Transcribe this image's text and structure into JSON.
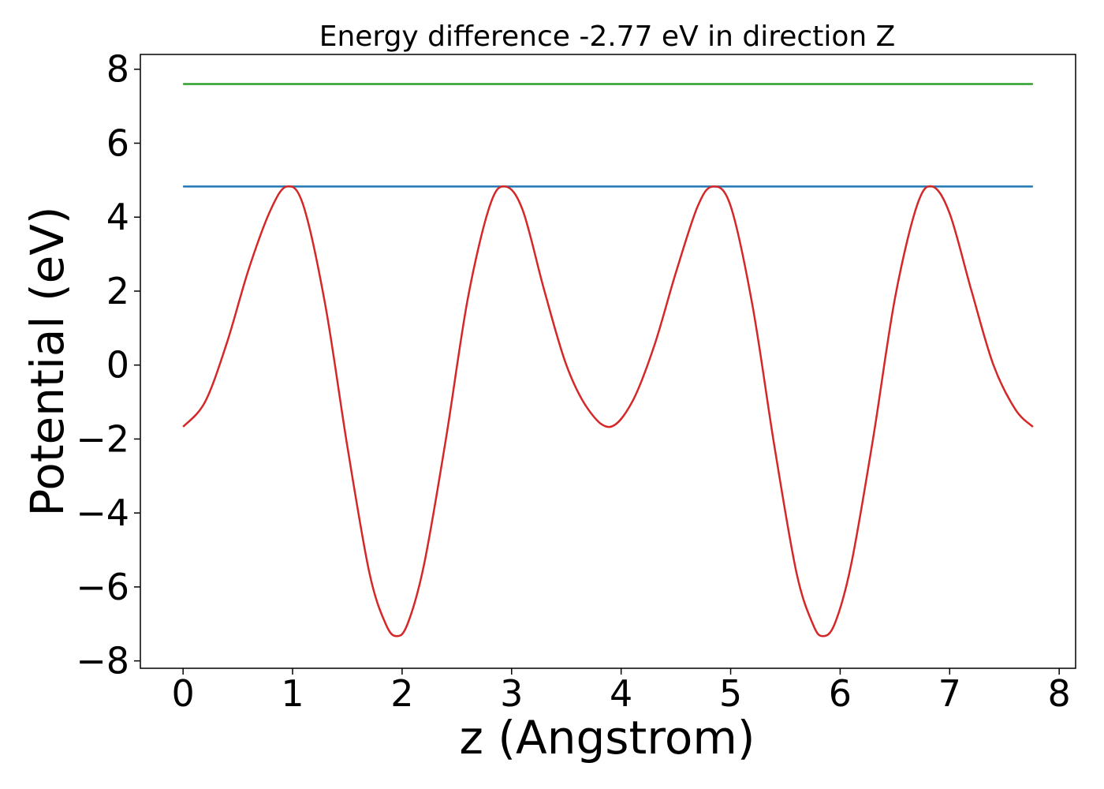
{
  "chart_data": {
    "type": "line",
    "title": "Energy difference -2.77 eV in direction Z",
    "xlabel": "z (Angstrom)",
    "ylabel": "Potential (eV)",
    "xlim": [
      -0.39,
      8.15
    ],
    "ylim": [
      -8.2,
      8.4
    ],
    "xticks": [
      "0",
      "1",
      "2",
      "3",
      "4",
      "5",
      "6",
      "7",
      "8"
    ],
    "yticks": [
      "−8",
      "−6",
      "−4",
      "−2",
      "0",
      "2",
      "4",
      "6",
      "8"
    ],
    "grid": false,
    "series": [
      {
        "color": "#2ca02c",
        "x": [
          0,
          7.76
        ],
        "y": [
          7.6,
          7.6
        ]
      },
      {
        "color": "#1f77b4",
        "x": [
          0,
          7.76
        ],
        "y": [
          4.83,
          4.83
        ]
      },
      {
        "color": "#d62728",
        "x": [
          0,
          0.2,
          0.4,
          0.6,
          0.8,
          0.95,
          1.1,
          1.3,
          1.5,
          1.7,
          1.85,
          1.95,
          2.05,
          2.2,
          2.4,
          2.6,
          2.8,
          2.94,
          3.1,
          3.3,
          3.5,
          3.7,
          3.9,
          4.1,
          4.3,
          4.5,
          4.7,
          4.84,
          5.0,
          5.2,
          5.4,
          5.6,
          5.75,
          5.84,
          5.95,
          6.1,
          6.3,
          6.5,
          6.7,
          6.84,
          7.0,
          7.2,
          7.4,
          7.6,
          7.76
        ],
        "y": [
          -1.67,
          -1.0,
          0.6,
          2.6,
          4.2,
          4.83,
          4.3,
          1.6,
          -2.2,
          -5.6,
          -7.0,
          -7.33,
          -7.0,
          -5.4,
          -2.0,
          1.8,
          4.3,
          4.83,
          4.2,
          2.0,
          0.0,
          -1.2,
          -1.67,
          -1.0,
          0.5,
          2.5,
          4.3,
          4.83,
          4.3,
          1.6,
          -2.2,
          -5.6,
          -7.0,
          -7.33,
          -7.0,
          -5.4,
          -2.0,
          1.8,
          4.3,
          4.83,
          4.1,
          2.0,
          0.0,
          -1.2,
          -1.67
        ]
      }
    ]
  }
}
